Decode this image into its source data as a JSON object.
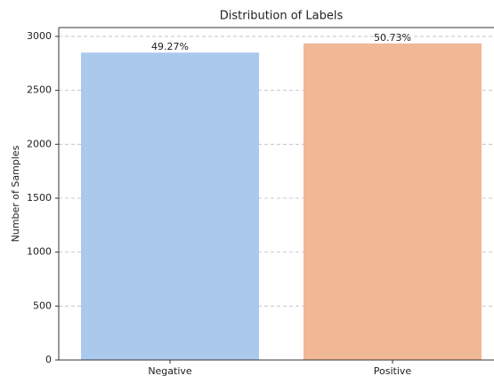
{
  "chart_data": {
    "type": "bar",
    "title": "Distribution of Labels",
    "ylabel": "Number of Samples",
    "categories": [
      "Negative",
      "Positive"
    ],
    "values": [
      2850,
      2935
    ],
    "percent_labels": [
      "49.27%",
      "50.73%"
    ],
    "colors": [
      "#abc9ed",
      "#f0b894"
    ],
    "ylim": [
      0,
      3082
    ],
    "yticks": [
      0,
      500,
      1000,
      1500,
      2000,
      2500,
      3000
    ],
    "grid": true
  }
}
